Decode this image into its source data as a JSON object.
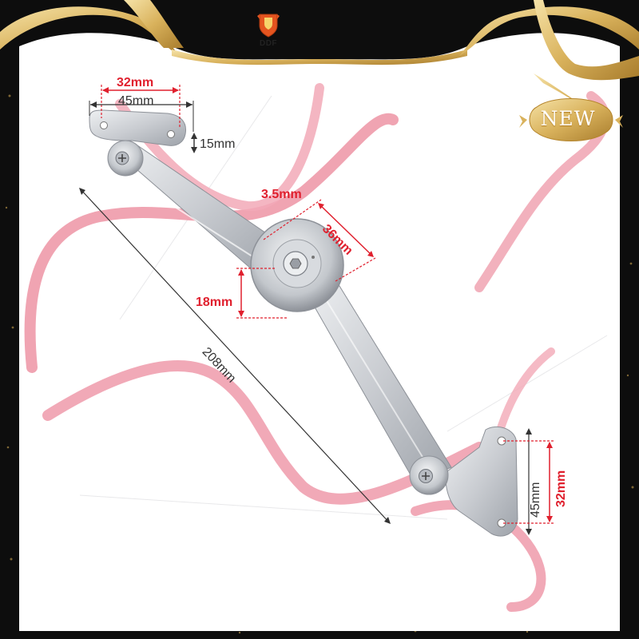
{
  "brand": {
    "name": "DDF",
    "icon": "crest-icon"
  },
  "badge": {
    "text": "NEW"
  },
  "dimensions": {
    "top_bracket_hole_spacing": "32mm",
    "top_bracket_width": "45mm",
    "top_bracket_height": "15mm",
    "arm_thickness": "3.5mm",
    "pivot_diameter": "36mm",
    "pivot_height": "18mm",
    "overall_length": "208mm",
    "bottom_bracket_width": "45mm",
    "bottom_bracket_hole_spacing": "32mm"
  },
  "colors": {
    "accent_red": "#e0202e",
    "ribbon_pink": "#ee9aaa",
    "gold": "#d9b25c",
    "metal": "#cfd2d6"
  }
}
